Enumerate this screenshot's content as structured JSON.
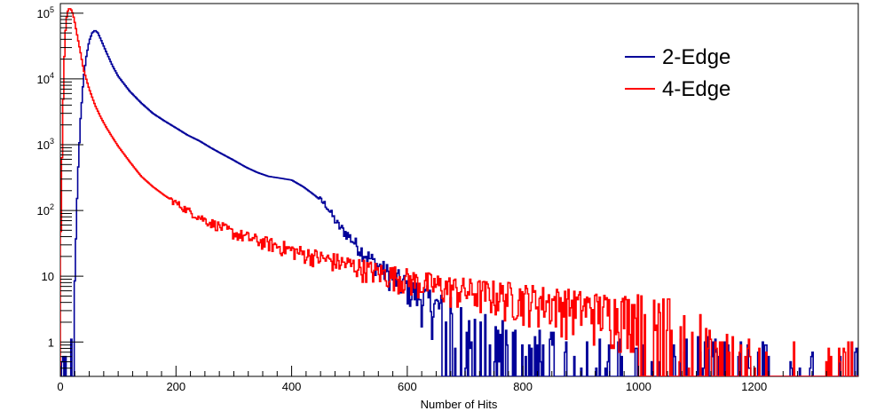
{
  "chart_data": {
    "type": "line",
    "title": "",
    "xlabel": "Number of Hits",
    "ylabel": "",
    "xlim": [
      0,
      1380
    ],
    "ylim": [
      0.3,
      140000
    ],
    "y_scale": "log",
    "grid": false,
    "legend_position": "top-right",
    "x_ticks": [
      {
        "value": 0,
        "label": "0"
      },
      {
        "value": 200,
        "label": "200"
      },
      {
        "value": 400,
        "label": "400"
      },
      {
        "value": 600,
        "label": "600"
      },
      {
        "value": 800,
        "label": "800"
      },
      {
        "value": 1000,
        "label": "1000"
      },
      {
        "value": 1200,
        "label": "1200"
      }
    ],
    "y_ticks": [
      {
        "value": 1,
        "base": "1",
        "exp": ""
      },
      {
        "value": 10,
        "base": "10",
        "exp": ""
      },
      {
        "value": 100,
        "base": "10",
        "exp": "2"
      },
      {
        "value": 1000,
        "base": "10",
        "exp": "3"
      },
      {
        "value": 10000,
        "base": "10",
        "exp": "4"
      },
      {
        "value": 100000,
        "base": "10",
        "exp": "5"
      }
    ],
    "series": [
      {
        "name": "2-Edge",
        "color": "#000099",
        "x": [
          0,
          10,
          18,
          22,
          26,
          30,
          35,
          40,
          45,
          50,
          55,
          60,
          65,
          70,
          80,
          90,
          100,
          120,
          140,
          160,
          180,
          200,
          220,
          240,
          260,
          280,
          300,
          320,
          340,
          360,
          380,
          400,
          420,
          440,
          460,
          480,
          500,
          520,
          540,
          560,
          580,
          600,
          620,
          640,
          660,
          680,
          700,
          720,
          740,
          760,
          780,
          800,
          850,
          900,
          950,
          1000,
          1050,
          1100,
          1150,
          1200,
          1250,
          1300,
          1350,
          1375
        ],
        "y": [
          0.3,
          0.3,
          0.3,
          1.5,
          20,
          300,
          2500,
          10000,
          22000,
          38000,
          50000,
          55000,
          50000,
          40000,
          25000,
          16000,
          11000,
          6500,
          4300,
          3000,
          2300,
          1800,
          1400,
          1150,
          900,
          720,
          580,
          460,
          380,
          330,
          310,
          290,
          230,
          170,
          120,
          60,
          40,
          25,
          17,
          12,
          9,
          7,
          5,
          4,
          3,
          2.5,
          2,
          1.5,
          1.2,
          1,
          0.8,
          0.6,
          0.5,
          0.4,
          0.4,
          0.4,
          0.4,
          0.4,
          0.3,
          0.3,
          0.3,
          0.3,
          0.3,
          0.3
        ]
      },
      {
        "name": "4-Edge",
        "color": "#ff0000",
        "x": [
          0,
          2,
          4,
          6,
          8,
          10,
          12,
          14,
          16,
          18,
          20,
          22,
          24,
          26,
          28,
          30,
          35,
          40,
          50,
          60,
          70,
          80,
          90,
          100,
          120,
          140,
          160,
          180,
          200,
          220,
          240,
          260,
          280,
          300,
          340,
          380,
          420,
          460,
          500,
          540,
          580,
          620,
          660,
          700,
          740,
          780,
          820,
          860,
          900,
          950,
          1000,
          1050,
          1080,
          1110,
          1130,
          1160,
          1200,
          1250,
          1300,
          1375
        ],
        "y": [
          12,
          200,
          2000,
          12000,
          40000,
          75000,
          100000,
          115000,
          118000,
          115000,
          108000,
          95000,
          80000,
          65000,
          52000,
          42000,
          25000,
          14000,
          7000,
          4000,
          2600,
          1800,
          1300,
          950,
          550,
          330,
          230,
          170,
          130,
          100,
          80,
          65,
          55,
          45,
          35,
          28,
          22,
          18,
          15,
          12,
          10,
          8,
          7,
          6,
          5.5,
          5,
          4.5,
          4,
          3.5,
          3,
          3,
          2.5,
          2,
          1.5,
          0.5,
          0.4,
          0.3,
          0.3,
          0.3,
          0.3
        ]
      }
    ]
  }
}
